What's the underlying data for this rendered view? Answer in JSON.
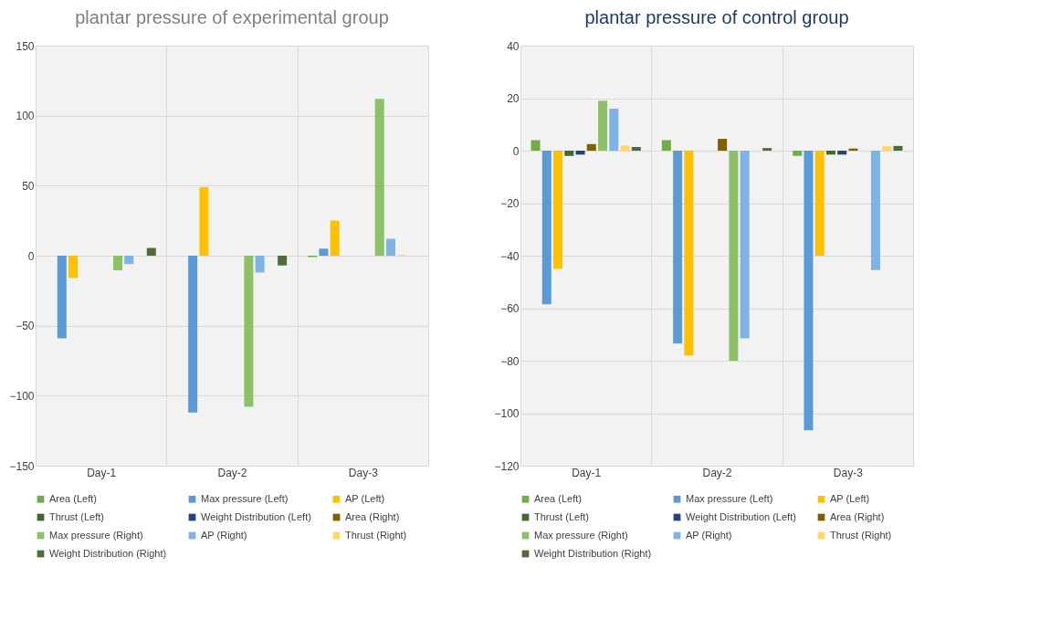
{
  "chart_data": [
    {
      "type": "bar",
      "title": "plantar pressure of experimental group",
      "categories": [
        "Day-1",
        "Day-2",
        "Day-3"
      ],
      "ylim": [
        -150,
        150
      ],
      "yticks": [
        -150,
        -100,
        -50,
        0,
        50,
        100,
        150
      ],
      "grid": true,
      "legend": "bottom",
      "series": [
        {
          "name": "Area (Left)",
          "color": "#70ad47",
          "values": [
            0,
            0,
            -1
          ]
        },
        {
          "name": "Max pressure (Left)",
          "color": "#5b9bd5",
          "values": [
            -59,
            -112,
            5
          ]
        },
        {
          "name": "AP (Left)",
          "color": "#ffc000",
          "values": [
            -16,
            49,
            25
          ]
        },
        {
          "name": "Thrust (Left)",
          "color": "#43682b",
          "values": [
            0,
            0,
            0
          ]
        },
        {
          "name": "Weight Distribution (Left)",
          "color": "#264478",
          "values": [
            0,
            0,
            0
          ]
        },
        {
          "name": "Area (Right)",
          "color": "#7f6000",
          "values": [
            0,
            0,
            0
          ]
        },
        {
          "name": "Max pressure (Right)",
          "color": "#8cc168",
          "values": [
            -10.5,
            -108,
            112
          ]
        },
        {
          "name": "AP (Right)",
          "color": "#7fb2e5",
          "values": [
            -6,
            -12,
            12
          ]
        },
        {
          "name": "Thrust (Right)",
          "color": "#ffd966",
          "values": [
            0,
            0,
            0.5
          ]
        },
        {
          "name": "Weight Distribution (Right)",
          "color": "#4f6b3a",
          "values": [
            5.5,
            -7,
            0
          ]
        }
      ]
    },
    {
      "type": "bar",
      "title": "plantar pressure of control group",
      "categories": [
        "Day-1",
        "Day-2",
        "Day-3"
      ],
      "ylim": [
        -120,
        40
      ],
      "yticks": [
        -120,
        -100,
        -80,
        -60,
        -40,
        -20,
        0,
        20,
        40
      ],
      "grid": true,
      "legend": "bottom",
      "series": [
        {
          "name": "Area (Left)",
          "color": "#70ad47",
          "values": [
            4,
            4,
            -2
          ]
        },
        {
          "name": "Max pressure (Left)",
          "color": "#5b9bd5",
          "values": [
            -58.5,
            -73.5,
            -106.5
          ]
        },
        {
          "name": "AP (Left)",
          "color": "#ffc000",
          "values": [
            -45,
            -78,
            -40
          ]
        },
        {
          "name": "Thrust (Left)",
          "color": "#43682b",
          "values": [
            -2,
            0,
            -1.5
          ]
        },
        {
          "name": "Weight Distribution (Left)",
          "color": "#264478",
          "values": [
            -1.5,
            0,
            -1.5
          ]
        },
        {
          "name": "Area (Right)",
          "color": "#7f6000",
          "values": [
            2.5,
            4.5,
            0.8
          ]
        },
        {
          "name": "Max pressure (Right)",
          "color": "#8cc168",
          "values": [
            19,
            -80,
            0
          ]
        },
        {
          "name": "AP (Right)",
          "color": "#7fb2e5",
          "values": [
            16,
            -71.5,
            -45.5
          ]
        },
        {
          "name": "Thrust (Right)",
          "color": "#ffd966",
          "values": [
            2,
            0,
            1.7
          ]
        },
        {
          "name": "Weight Distribution (Right)",
          "color": "#4f6b3a",
          "values": [
            1.4,
            1,
            1.8
          ]
        }
      ]
    }
  ]
}
